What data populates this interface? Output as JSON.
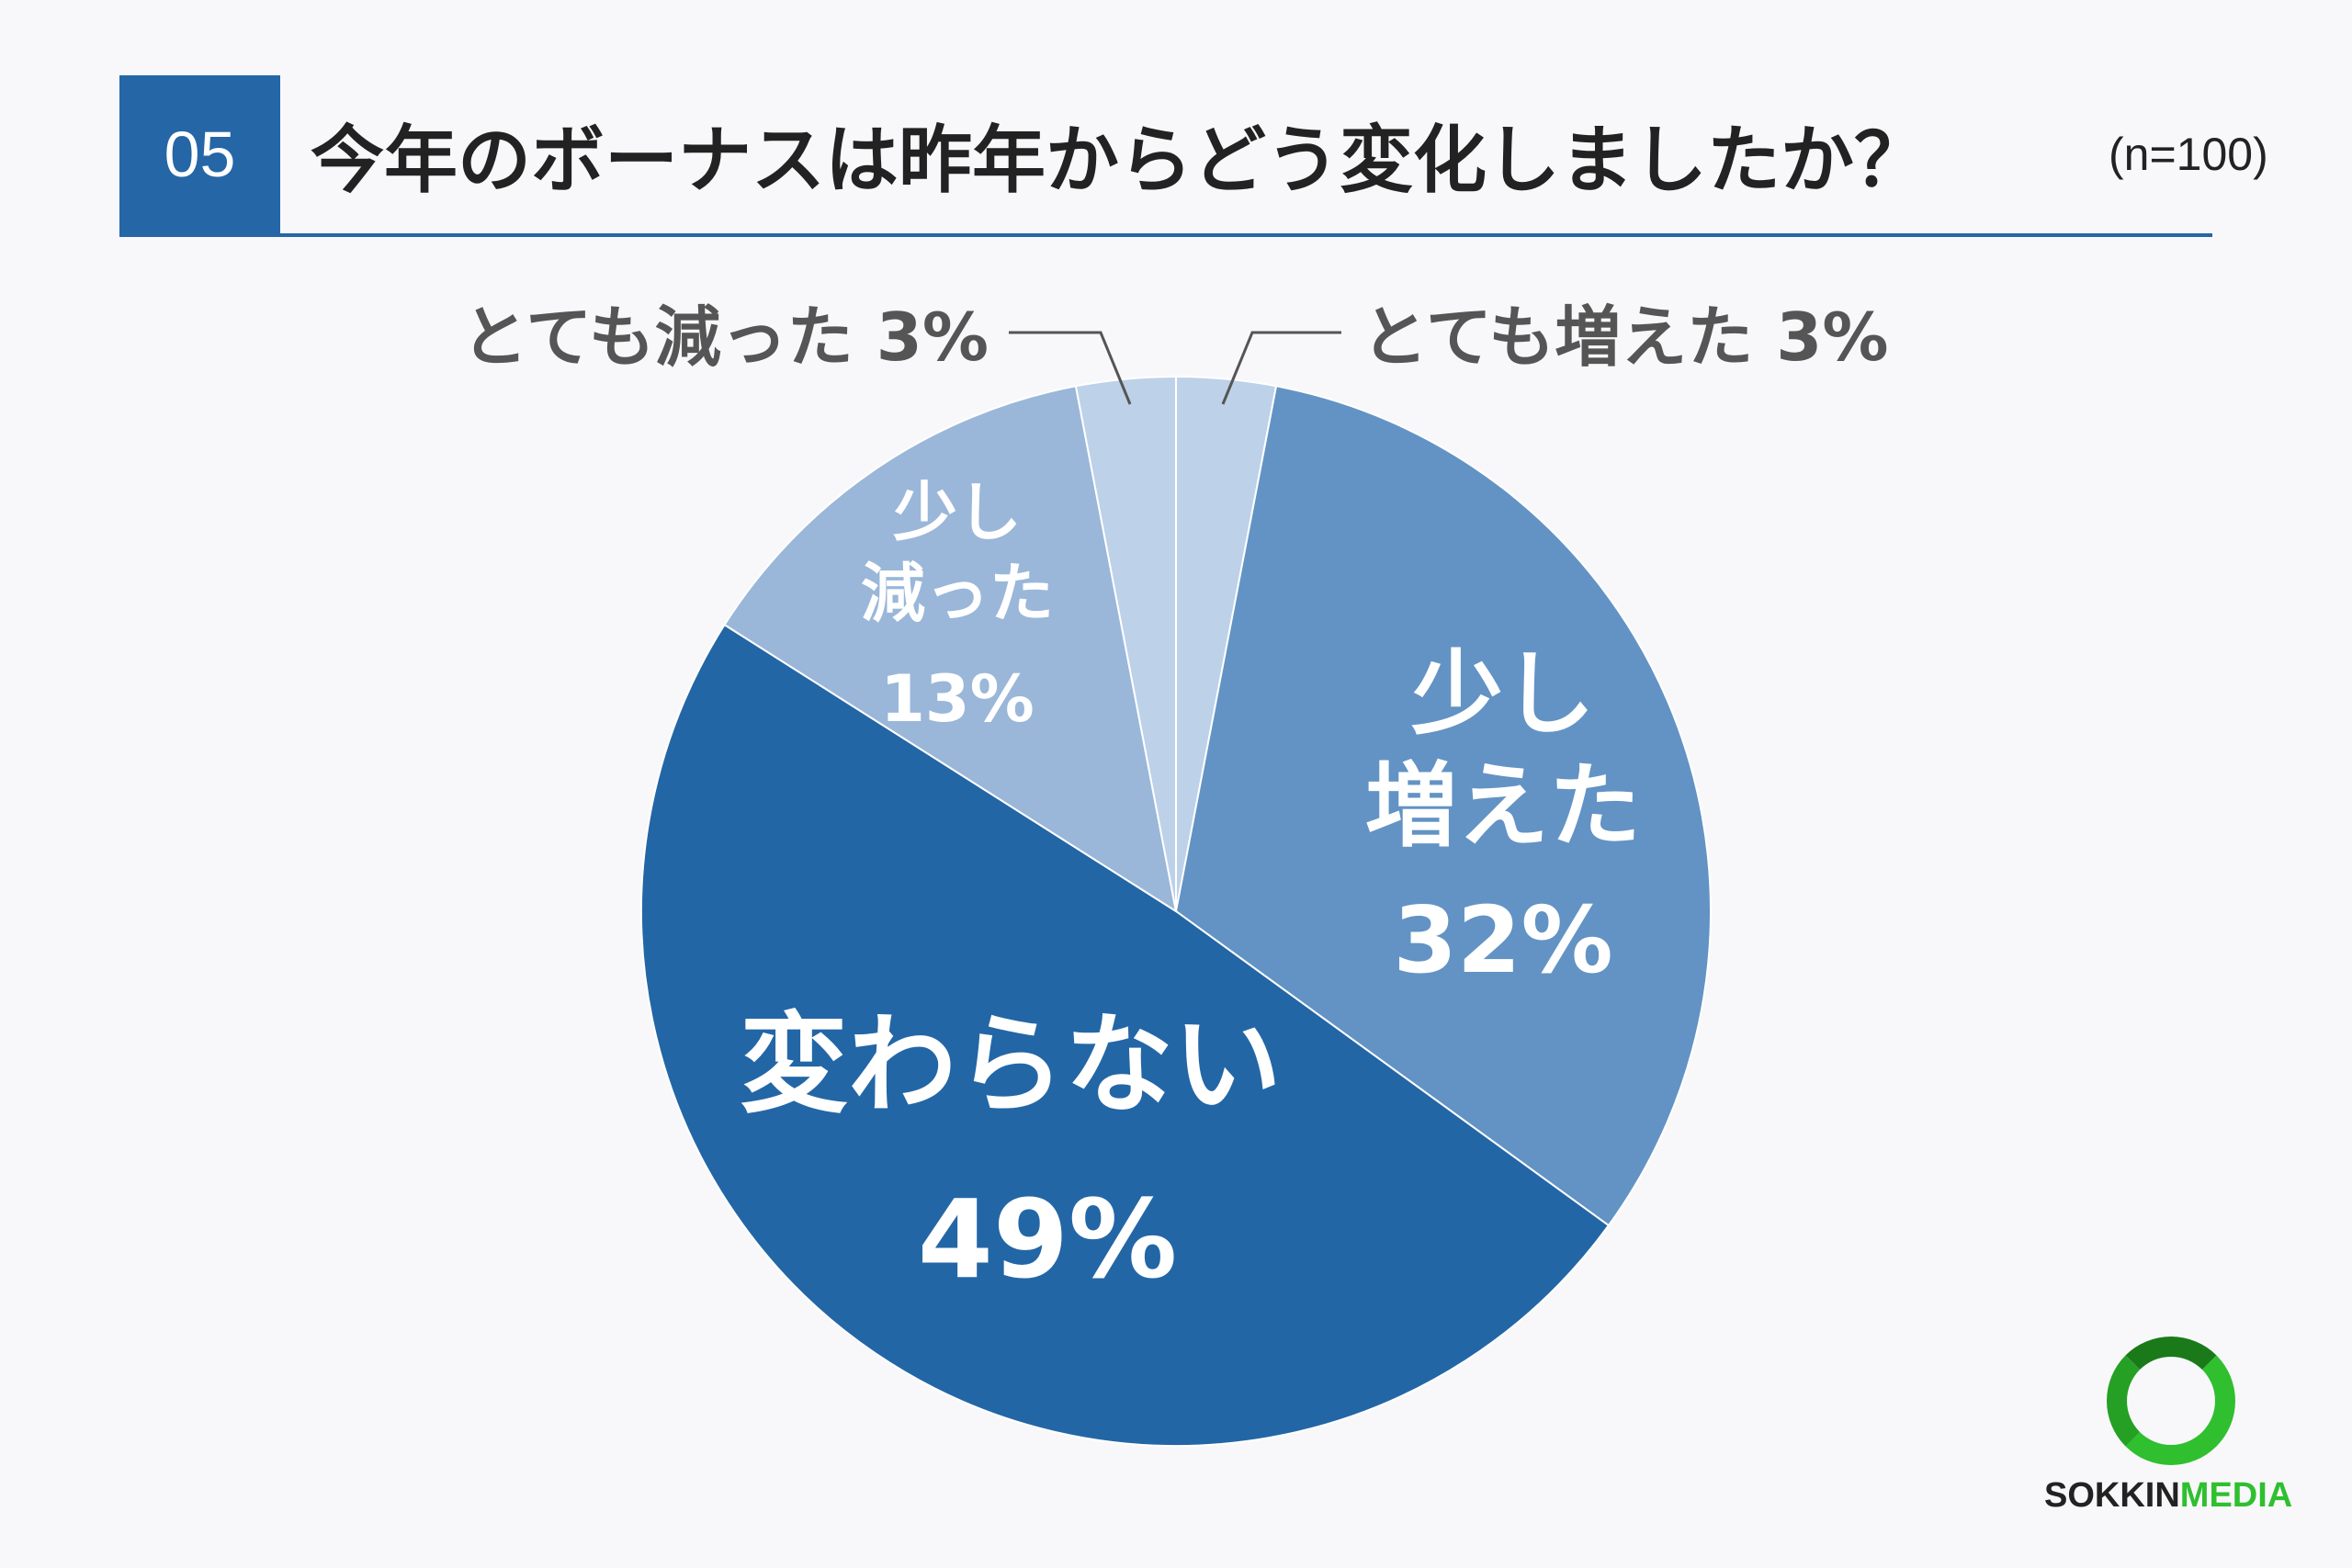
{
  "header": {
    "number": "05",
    "question": "今年のボーナスは昨年からどう変化しましたか？",
    "sample": "(n=100)"
  },
  "chart_data": {
    "type": "pie",
    "title": "今年のボーナスは昨年からどう変化しましたか？",
    "start_angle_deg": 0,
    "direction": "clockwise",
    "slices": [
      {
        "label": "とても増えた",
        "value": 3,
        "display": "3%",
        "color": "#bdd1e9",
        "label_placement": "outside"
      },
      {
        "label": "少し増えた",
        "value": 32,
        "display": "32%",
        "color": "#6293c4",
        "label_placement": "inside"
      },
      {
        "label": "変わらない",
        "value": 49,
        "display": "49%",
        "color": "#2366a6",
        "label_placement": "inside"
      },
      {
        "label": "少し減った",
        "value": 13,
        "display": "13%",
        "color": "#9ab7d9",
        "label_placement": "inside"
      },
      {
        "label": "とても減った",
        "value": 3,
        "display": "3%",
        "color": "#bdd1e9",
        "label_placement": "outside"
      }
    ]
  },
  "brand": {
    "logo_text_main": "SOKKIN",
    "logo_text_accent": "MEDIA",
    "ring_color": "#2fbf2f"
  }
}
